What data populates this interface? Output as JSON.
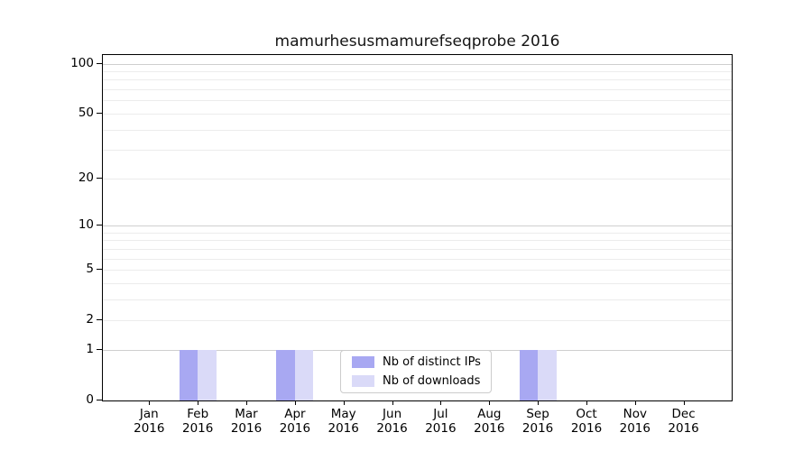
{
  "chart_data": {
    "type": "bar",
    "title": "mamurhesusmamurefseqprobe 2016",
    "year": "2016",
    "categories": [
      "Jan",
      "Feb",
      "Mar",
      "Apr",
      "May",
      "Jun",
      "Jul",
      "Aug",
      "Sep",
      "Oct",
      "Nov",
      "Dec"
    ],
    "series": [
      {
        "name": "Nb of distinct IPs",
        "color": "#a8a8f2",
        "values": [
          0,
          1,
          0,
          1,
          0,
          0,
          0,
          0,
          1,
          0,
          0,
          0
        ]
      },
      {
        "name": "Nb of downloads",
        "color": "#dadaf8",
        "values": [
          0,
          1,
          0,
          1,
          0,
          0,
          0,
          0,
          1,
          0,
          0,
          0
        ]
      }
    ],
    "xlabel": "",
    "ylabel": "",
    "yscale": "log1p",
    "ylim": [
      0,
      111
    ],
    "y_ticks": [
      0,
      1,
      2,
      5,
      10,
      20,
      50,
      100
    ],
    "y_minor_ticks": [
      3,
      4,
      6,
      7,
      8,
      9,
      30,
      40,
      60,
      70,
      80,
      90
    ],
    "y_decade_ticks": [
      1,
      10,
      100
    ],
    "grid": "horizontal",
    "legend_position": "bottom-center"
  },
  "colors": {
    "major_grid": "#cfcfcf",
    "minor_grid": "#ececec",
    "spine": "#000000"
  }
}
